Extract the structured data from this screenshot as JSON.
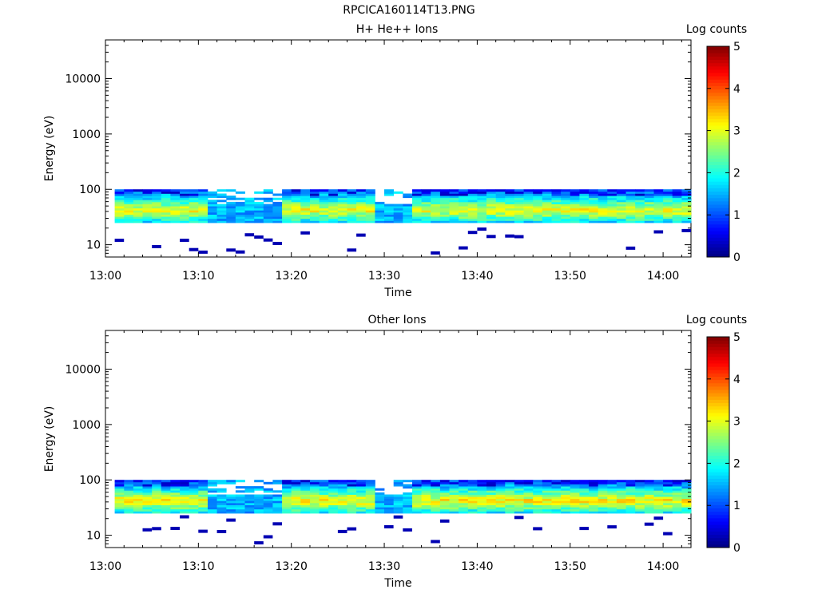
{
  "title": "RPCICA160114T13.PNG",
  "chart_data": [
    {
      "type": "heatmap",
      "title": "H+ He++ Ions",
      "xlabel": "Time",
      "ylabel": "Energy (eV)",
      "x_ticks": [
        "13:00",
        "13:10",
        "13:20",
        "13:30",
        "13:40",
        "13:50",
        "14:00"
      ],
      "y_ticks": [
        "10",
        "100",
        "1000",
        "10000"
      ],
      "y_scale": "log",
      "ylim": [
        6,
        50000
      ],
      "xlim_minutes": [
        0,
        63
      ],
      "colorbar": {
        "label": "Log counts",
        "ticks": [
          "0",
          "1",
          "2",
          "3",
          "4",
          "5"
        ],
        "range": [
          0,
          5
        ]
      },
      "background_energy_band": [
        10,
        100
      ],
      "data_band_top_ev": 100,
      "data_band_bottom_ev": 25,
      "peak_log_counts": 3.1,
      "active_periods_minutes": [
        [
          0,
          10
        ],
        [
          18,
          28
        ],
        [
          32,
          63
        ]
      ],
      "quiet_periods_minutes": [
        [
          10,
          18
        ],
        [
          28,
          32
        ]
      ]
    },
    {
      "type": "heatmap",
      "title": "Other Ions",
      "xlabel": "Time",
      "ylabel": "Energy (eV)",
      "x_ticks": [
        "13:00",
        "13:10",
        "13:20",
        "13:30",
        "13:40",
        "13:50",
        "14:00"
      ],
      "y_ticks": [
        "10",
        "100",
        "1000",
        "10000"
      ],
      "y_scale": "log",
      "ylim": [
        6,
        50000
      ],
      "xlim_minutes": [
        0,
        63
      ],
      "colorbar": {
        "label": "Log counts",
        "ticks": [
          "0",
          "1",
          "2",
          "3",
          "4",
          "5"
        ],
        "range": [
          0,
          5
        ]
      },
      "data_band_top_ev": 100,
      "data_band_bottom_ev": 25,
      "peak_log_counts": 3.2,
      "active_periods_minutes": [
        [
          0,
          10
        ],
        [
          18,
          28
        ],
        [
          32,
          63
        ]
      ],
      "quiet_periods_minutes": [
        [
          10,
          18
        ],
        [
          28,
          32
        ]
      ]
    }
  ]
}
